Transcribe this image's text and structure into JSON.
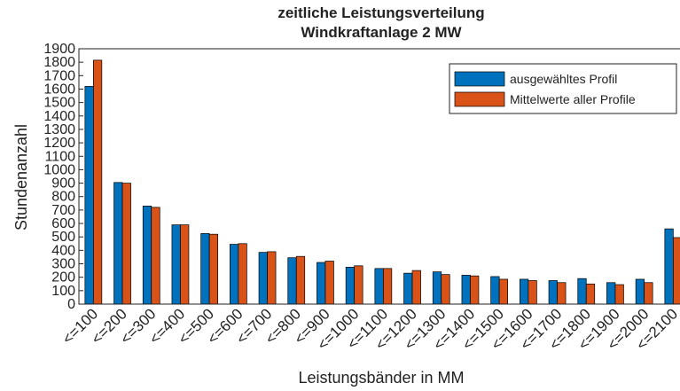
{
  "chart_data": {
    "type": "bar",
    "title": "zeitliche Leistungsverteilung",
    "subtitle": "Windkraftanlage 2 MW",
    "xlabel": "Leistungsbänder in MM",
    "ylabel": "Stundenanzahl",
    "categories": [
      "<=100",
      "<=200",
      "<=300",
      "<=400",
      "<=500",
      "<=600",
      "<=700",
      "<=800",
      "<=900",
      "<=1000",
      "<=1100",
      "<=1200",
      "<=1300",
      "<=1400",
      "<=1500",
      "<=1600",
      "<=1700",
      "<=1800",
      "<=1900",
      "<=2000",
      "<=2100"
    ],
    "series": [
      {
        "name": "ausgewähltes Profil",
        "color": "#0072bd",
        "values": [
          1620,
          905,
          730,
          590,
          525,
          445,
          385,
          345,
          310,
          275,
          265,
          230,
          240,
          215,
          205,
          185,
          175,
          190,
          160,
          185,
          560
        ]
      },
      {
        "name": "Mittelwerte aller Profile",
        "color": "#d95319",
        "values": [
          1815,
          900,
          720,
          590,
          520,
          450,
          390,
          355,
          320,
          285,
          265,
          250,
          220,
          210,
          185,
          175,
          160,
          150,
          145,
          160,
          495
        ]
      }
    ],
    "ylim": [
      0,
      1900
    ],
    "yticks": [
      0,
      100,
      200,
      300,
      400,
      500,
      600,
      700,
      800,
      900,
      1000,
      1100,
      1200,
      1300,
      1400,
      1500,
      1600,
      1700,
      1800,
      1900
    ],
    "legend": "northeast"
  }
}
